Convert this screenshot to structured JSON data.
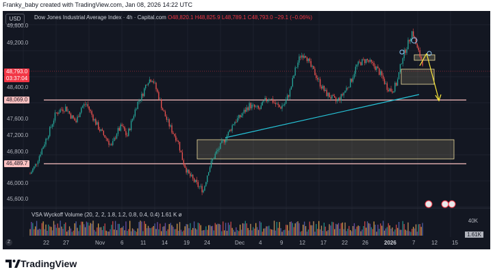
{
  "header": {
    "caption": "Franky_baby created with TradingView.com, Jan 08, 2026 14:22 UTC"
  },
  "toolbar": {
    "currency": "USD"
  },
  "legend": {
    "symbol": "Dow Jones Industrial Average Index · 4h · Capital.com",
    "open": "O48,820.1",
    "high": "H48,825.9",
    "low": "L48,789.1",
    "close": "C48,793.0",
    "change": "−29.1 (−0.06%)"
  },
  "price_axis": {
    "ticks": [
      "49,600.0",
      "49,200.0",
      "48,400.0",
      "47,600.0",
      "47,200.0",
      "46,800.0",
      "46,000.0",
      "45,600.0"
    ],
    "current_price": "48,793.0",
    "countdown": "03:37:04",
    "level_upper": "48,069.0",
    "level_lower": "46,489.7"
  },
  "time_axis": {
    "labels": [
      "22",
      "27",
      "Nov",
      "6",
      "11",
      "14",
      "19",
      "24",
      "Dec",
      "4",
      "9",
      "12",
      "17",
      "22",
      "26",
      "2026",
      "7",
      "12",
      "15"
    ]
  },
  "indicator": {
    "name": "VSA Wyckoff Volume (20, 2, 2, 1.8, 1.2, 0.8, 0.4, 0.4)",
    "value": "1.61 K",
    "suffix": "ø",
    "axis_label": "40K",
    "current_value": "1.61K"
  },
  "footer": {
    "brand": "TradingView"
  },
  "colors": {
    "background": "#131722",
    "up": "#26a69a",
    "down": "#ef5350",
    "level_line": "#ffc1c1",
    "trendline": "#26c6da",
    "arrow": "#ffeb3b",
    "zone": "#f0e0a0"
  },
  "chart_data": {
    "type": "candlestick",
    "title": "Dow Jones Industrial Average Index · 4h · Capital.com",
    "x_labels": [
      "22",
      "27",
      "Nov",
      "6",
      "11",
      "14",
      "19",
      "24",
      "Dec",
      "4",
      "9",
      "12",
      "17",
      "22",
      "26",
      "2026",
      "7",
      "12",
      "15"
    ],
    "ylim": [
      45400,
      49900
    ],
    "horizontal_levels": [
      48069.0,
      46489.7
    ],
    "close_path": [
      46100,
      46300,
      46600,
      46900,
      47200,
      47550,
      47650,
      47700,
      47500,
      47350,
      47700,
      47800,
      47550,
      47300,
      47100,
      46950,
      46750,
      47100,
      47250,
      47000,
      47400,
      47800,
      48000,
      48350,
      48400,
      48050,
      47650,
      47350,
      47100,
      46900,
      46400,
      46100,
      45950,
      45800,
      45700,
      46200,
      46500,
      46700,
      46900,
      47100,
      47350,
      47450,
      47600,
      47750,
      47700,
      47650,
      47850,
      47950,
      47800,
      47700,
      47800,
      48100,
      48600,
      48950,
      49000,
      48700,
      48500,
      48250,
      48050,
      47950,
      47850,
      47950,
      48150,
      48350,
      48700,
      48800,
      48850,
      48750,
      48650,
      48450,
      48200,
      48100,
      48300,
      48900,
      49200,
      49550,
      49100,
      48793
    ]
  }
}
